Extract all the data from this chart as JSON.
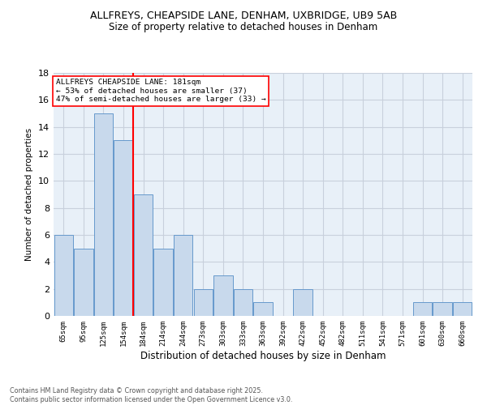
{
  "title1": "ALLFREYS, CHEAPSIDE LANE, DENHAM, UXBRIDGE, UB9 5AB",
  "title2": "Size of property relative to detached houses in Denham",
  "xlabel": "Distribution of detached houses by size in Denham",
  "ylabel": "Number of detached properties",
  "bin_labels": [
    "65sqm",
    "95sqm",
    "125sqm",
    "154sqm",
    "184sqm",
    "214sqm",
    "244sqm",
    "273sqm",
    "303sqm",
    "333sqm",
    "363sqm",
    "392sqm",
    "422sqm",
    "452sqm",
    "482sqm",
    "511sqm",
    "541sqm",
    "571sqm",
    "601sqm",
    "630sqm",
    "660sqm"
  ],
  "bar_heights": [
    6,
    5,
    15,
    13,
    9,
    5,
    6,
    2,
    3,
    2,
    1,
    0,
    2,
    0,
    0,
    0,
    0,
    0,
    1,
    1,
    1
  ],
  "bar_color": "#c8d9ec",
  "bar_edge_color": "#6699cc",
  "grid_color": "#c8d0dc",
  "vline_after_index": 3,
  "vline_color": "red",
  "annotation_title": "ALLFREYS CHEAPSIDE LANE: 181sqm",
  "annotation_line1": "← 53% of detached houses are smaller (37)",
  "annotation_line2": "47% of semi-detached houses are larger (33) →",
  "annotation_box_color": "white",
  "annotation_box_edge": "red",
  "footer_line1": "Contains HM Land Registry data © Crown copyright and database right 2025.",
  "footer_line2": "Contains public sector information licensed under the Open Government Licence v3.0.",
  "ylim": [
    0,
    18
  ],
  "yticks": [
    0,
    2,
    4,
    6,
    8,
    10,
    12,
    14,
    16,
    18
  ],
  "background_color": "#e8f0f8"
}
